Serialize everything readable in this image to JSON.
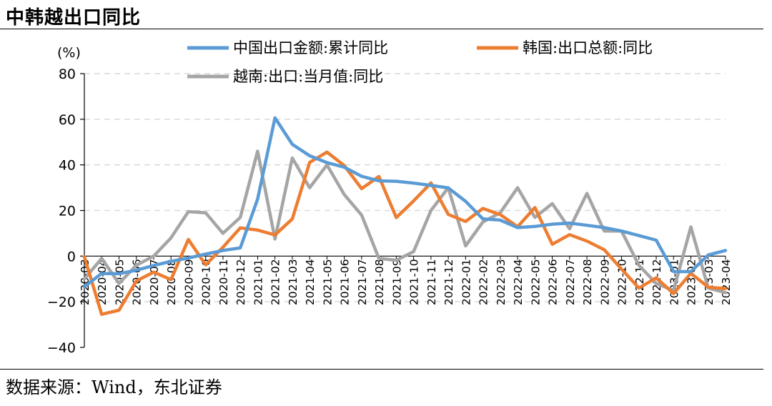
{
  "title": "中韩越出口同比",
  "source": "数据来源：Wind，东北证券",
  "chart_data": {
    "type": "line",
    "unit_label": "(%)",
    "ylim": [
      -40,
      80
    ],
    "yticks": [
      -40,
      -20,
      0,
      20,
      40,
      60,
      80
    ],
    "grid": true,
    "legend_position": "top",
    "x": [
      "2020-03",
      "2020-04",
      "2020-05",
      "2020-06",
      "2020-07",
      "2020-08",
      "2020-09",
      "2020-10",
      "2020-11",
      "2020-12",
      "2021-01",
      "2021-02",
      "2021-03",
      "2021-04",
      "2021-05",
      "2021-06",
      "2021-07",
      "2021-08",
      "2021-09",
      "2021-10",
      "2021-11",
      "2021-12",
      "2022-01",
      "2022-02",
      "2022-03",
      "2022-04",
      "2022-05",
      "2022-06",
      "2022-07",
      "2022-08",
      "2022-09",
      "2022-10",
      "2022-11",
      "2022-12",
      "2023-01",
      "2023-02",
      "2023-03",
      "2023-04"
    ],
    "series": [
      {
        "name": "中国出口金额:累计同比",
        "color": "#5B9BD5",
        "values": [
          -13.4,
          -7.6,
          -7.7,
          -6.2,
          -4.1,
          -2.3,
          -0.8,
          0.9,
          2.5,
          3.6,
          25,
          60.6,
          49,
          44,
          41,
          39,
          35,
          33,
          32.8,
          32,
          31,
          29.9,
          24,
          16.3,
          15.8,
          12.5,
          13,
          14,
          14.5,
          13.5,
          12.5,
          11,
          9,
          7,
          -6.8,
          -6.8,
          0.5,
          2.5
        ]
      },
      {
        "name": "韩国:出口总额:同比",
        "color": "#ED7D31",
        "values": [
          -0.2,
          -25.5,
          -23.7,
          -10.9,
          -7,
          -10.3,
          7.3,
          -3.8,
          3.9,
          12.4,
          11.4,
          9.3,
          16.3,
          41.1,
          45.6,
          39.7,
          29.6,
          34.9,
          16.9,
          24.2,
          32.1,
          18.3,
          15.2,
          20.9,
          18.2,
          12.9,
          21.3,
          5.2,
          9.4,
          6.6,
          2.8,
          -5.7,
          -14,
          -9.5,
          -16.4,
          -7.5,
          -13.6,
          -14.2
        ]
      },
      {
        "name": "越南:出口:当月值:同比",
        "color": "#A5A5A5",
        "values": [
          -10,
          -1,
          -12,
          -4,
          0,
          8,
          19.5,
          19,
          10,
          17,
          46,
          7.5,
          43,
          30,
          40,
          27,
          18,
          -1,
          -1.8,
          2,
          20,
          30,
          4.5,
          15,
          19,
          30,
          17,
          23,
          12,
          27.5,
          11,
          11,
          -4,
          -12,
          -15,
          12.8,
          -14,
          -16
        ]
      }
    ]
  }
}
